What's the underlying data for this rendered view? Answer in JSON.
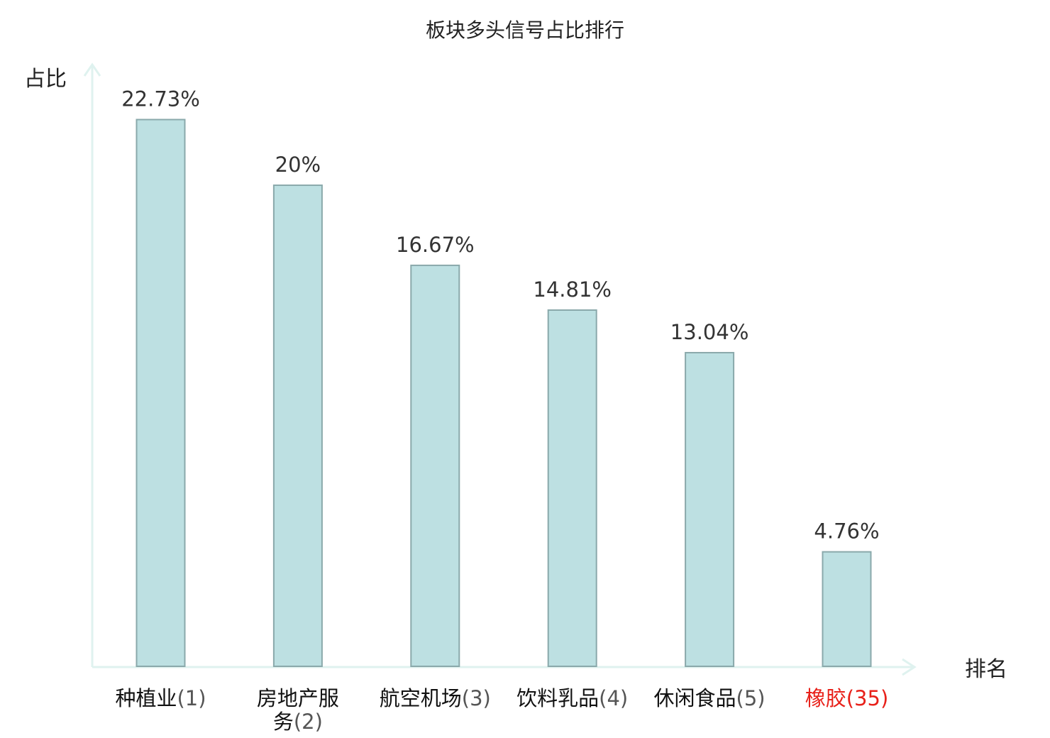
{
  "chart_data": {
    "type": "bar",
    "title": "板块多头信号占比排行",
    "ylabel": "占比",
    "xlabel": "排名",
    "ylim": [
      0,
      25
    ],
    "grid": false,
    "categories": [
      {
        "lines": [
          [
            "种植业",
            "(1)"
          ]
        ],
        "highlight": false
      },
      {
        "lines": [
          [
            "房地产服",
            ""
          ],
          [
            "务",
            "(2)"
          ]
        ],
        "highlight": false
      },
      {
        "lines": [
          [
            "航空机场",
            "(3)"
          ]
        ],
        "highlight": false
      },
      {
        "lines": [
          [
            "饮料乳品",
            "(4)"
          ]
        ],
        "highlight": false
      },
      {
        "lines": [
          [
            "休闲食品",
            "(5)"
          ]
        ],
        "highlight": false
      },
      {
        "lines": [
          [
            "橡胶",
            "(35)"
          ]
        ],
        "highlight": true
      }
    ],
    "values": [
      22.73,
      20,
      16.67,
      14.81,
      13.04,
      4.76
    ],
    "value_labels": [
      "22.73%",
      "20%",
      "16.67%",
      "14.81%",
      "13.04%",
      "4.76%"
    ],
    "colors": {
      "bar_fill": "#bde0e2",
      "bar_stroke": "#8aa9ab",
      "axis": "#dff2ef",
      "highlight_text": "#e8211a",
      "text": "#222222"
    }
  }
}
